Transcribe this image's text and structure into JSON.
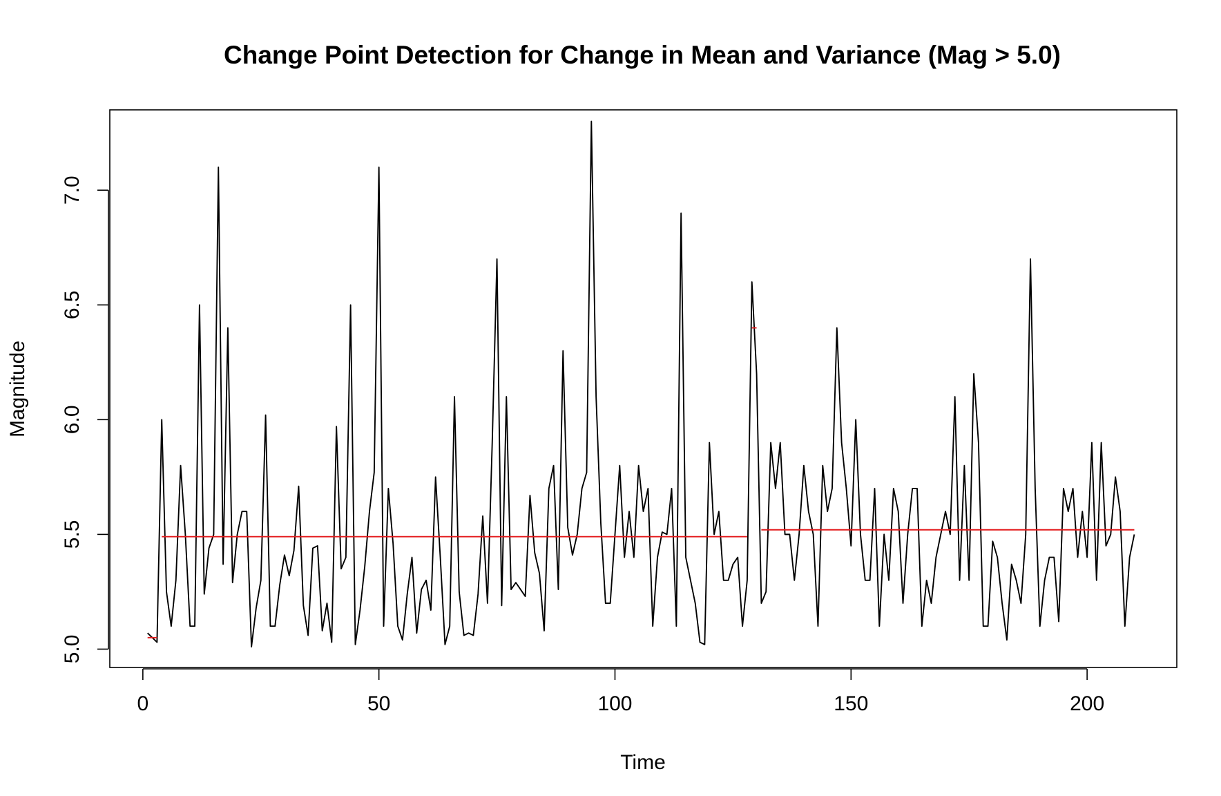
{
  "chart_data": {
    "type": "line",
    "title": "Change Point Detection for Change in Mean and Variance (Mag > 5.0)",
    "xlabel": "Time",
    "ylabel": "Magnitude",
    "xlim": [
      -7,
      219
    ],
    "ylim": [
      4.92,
      7.35
    ],
    "xticks": [
      0,
      50,
      100,
      150,
      200
    ],
    "xtick_labels": [
      "0",
      "50",
      "100",
      "150",
      "200"
    ],
    "yticks": [
      5.0,
      5.5,
      6.0,
      6.5,
      7.0
    ],
    "ytick_labels": [
      "5.0",
      "5.5",
      "6.0",
      "6.5",
      "7.0"
    ],
    "grid": false,
    "legend": "none",
    "colors": {
      "series": "#000000",
      "segment_means": "#e41a1c",
      "frame": "#000000"
    },
    "series": [
      {
        "x_start": 1,
        "values": [
          5.07,
          5.05,
          5.03,
          6.0,
          5.25,
          5.1,
          5.3,
          5.8,
          5.5,
          5.1,
          5.1,
          6.5,
          5.24,
          5.44,
          5.5,
          7.1,
          5.37,
          6.4,
          5.29,
          5.5,
          5.6,
          5.6,
          5.01,
          5.18,
          5.3,
          6.02,
          5.1,
          5.1,
          5.28,
          5.41,
          5.32,
          5.43,
          5.71,
          5.19,
          5.06,
          5.44,
          5.45,
          5.08,
          5.2,
          5.03,
          5.97,
          5.35,
          5.4,
          6.5,
          5.02,
          5.17,
          5.36,
          5.6,
          5.77,
          7.1,
          5.1,
          5.7,
          5.46,
          5.1,
          5.04,
          5.24,
          5.4,
          5.07,
          5.26,
          5.3,
          5.17,
          5.75,
          5.4,
          5.02,
          5.1,
          6.1,
          5.25,
          5.06,
          5.07,
          5.06,
          5.24,
          5.58,
          5.2,
          5.9,
          6.7,
          5.19,
          6.1,
          5.26,
          5.29,
          5.26,
          5.23,
          5.67,
          5.42,
          5.33,
          5.08,
          5.7,
          5.8,
          5.26,
          6.3,
          5.53,
          5.41,
          5.5,
          5.7,
          5.77,
          7.3,
          6.1,
          5.55,
          5.2,
          5.2,
          5.5,
          5.8,
          5.4,
          5.6,
          5.4,
          5.8,
          5.6,
          5.7,
          5.1,
          5.4,
          5.51,
          5.5,
          5.7,
          5.1,
          6.9,
          5.4,
          5.3,
          5.2,
          5.03,
          5.02,
          5.9,
          5.5,
          5.6,
          5.3,
          5.3,
          5.37,
          5.4,
          5.1,
          5.3,
          6.6,
          6.2,
          5.2,
          5.25,
          5.9,
          5.7,
          5.9,
          5.5,
          5.5,
          5.3,
          5.5,
          5.8,
          5.6,
          5.5,
          5.1,
          5.8,
          5.6,
          5.7,
          6.4,
          5.9,
          5.7,
          5.45,
          6.0,
          5.5,
          5.3,
          5.3,
          5.7,
          5.1,
          5.5,
          5.3,
          5.7,
          5.6,
          5.2,
          5.5,
          5.7,
          5.7,
          5.1,
          5.3,
          5.2,
          5.4,
          5.5,
          5.6,
          5.5,
          6.1,
          5.3,
          5.8,
          5.3,
          6.2,
          5.9,
          5.1,
          5.1,
          5.47,
          5.4,
          5.2,
          5.04,
          5.37,
          5.3,
          5.2,
          5.5,
          6.7,
          5.7,
          5.1,
          5.3,
          5.4,
          5.4,
          5.12,
          5.7,
          5.6,
          5.7,
          5.4,
          5.6,
          5.4,
          5.9,
          5.3,
          5.9,
          5.45,
          5.5,
          5.75,
          5.6,
          5.1,
          5.4,
          5.5
        ]
      }
    ],
    "segment_means": [
      {
        "x_start": 1,
        "x_end": 3,
        "mean": 5.05
      },
      {
        "x_start": 4,
        "x_end": 128,
        "mean": 5.49
      },
      {
        "x_start": 129,
        "x_end": 130,
        "mean": 6.4
      },
      {
        "x_start": 131,
        "x_end": 210,
        "mean": 5.52
      }
    ]
  }
}
